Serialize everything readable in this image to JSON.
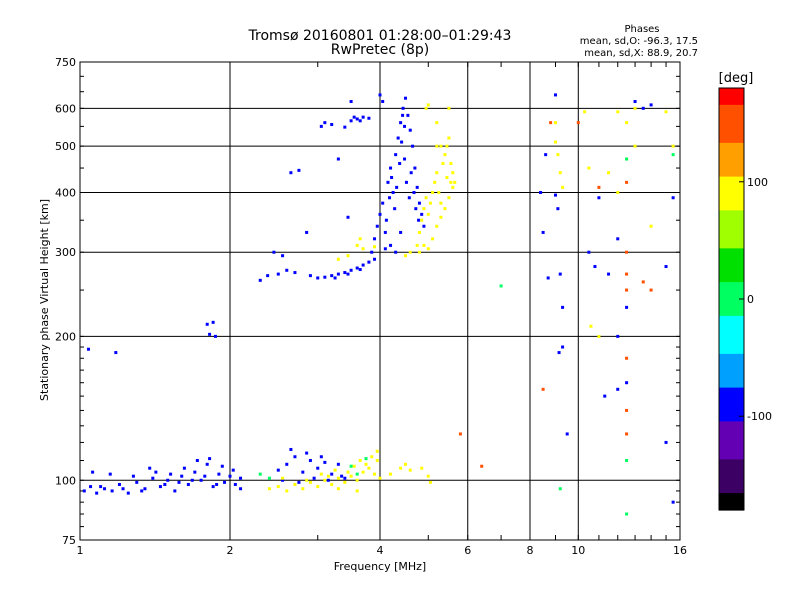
{
  "chart_data": {
    "type": "scatter",
    "title": "Tromsø 20160801 01:28:00–01:29:43",
    "subtitle": "RwPretec (8p)",
    "xlabel": "Frequency [MHz]",
    "ylabel": "Stationary phase Virtual Height [km]",
    "x_scale": "log2",
    "y_scale": "log",
    "xlim": [
      1,
      16
    ],
    "ylim": [
      75,
      750
    ],
    "x_ticks": [
      1,
      2,
      4,
      6,
      8,
      10,
      16
    ],
    "y_ticks": [
      75,
      100,
      200,
      300,
      400,
      500,
      600,
      750
    ],
    "x_grid": [
      2,
      4,
      6,
      8,
      10
    ],
    "y_grid": [
      100,
      200,
      300,
      400,
      500,
      600
    ],
    "grid": true,
    "phases": {
      "title": "Phases",
      "o_line": "mean, sd,O: -96.3, 17.5",
      "x_line": "mean, sd,X: 88.9, 20.7"
    },
    "colorbar": {
      "label": "[deg]",
      "range": [
        -180,
        180
      ],
      "ticks": [
        -100,
        0,
        100
      ],
      "colors": [
        "#000000",
        "#3c0064",
        "#6400b4",
        "#0000ff",
        "#00a0ff",
        "#00ffff",
        "#00ff60",
        "#00e000",
        "#a0ff00",
        "#ffff00",
        "#ffa000",
        "#ff5000",
        "#ff0000"
      ]
    },
    "series": [
      {
        "phase_deg": -100,
        "points": [
          [
            1.02,
            95
          ],
          [
            1.05,
            97
          ],
          [
            1.08,
            94
          ],
          [
            1.12,
            96
          ],
          [
            1.16,
            95
          ],
          [
            1.2,
            98
          ],
          [
            1.25,
            94
          ],
          [
            1.3,
            99
          ],
          [
            1.35,
            96
          ],
          [
            1.4,
            101
          ],
          [
            1.45,
            97
          ],
          [
            1.5,
            100
          ],
          [
            1.55,
            95
          ],
          [
            1.6,
            102
          ],
          [
            1.65,
            98
          ],
          [
            1.7,
            104
          ],
          [
            1.75,
            100
          ],
          [
            1.8,
            108
          ],
          [
            1.85,
            97
          ],
          [
            1.9,
            103
          ],
          [
            1.95,
            99
          ],
          [
            2.0,
            102
          ],
          [
            2.05,
            98
          ],
          [
            2.1,
            101
          ],
          [
            1.1,
            97
          ],
          [
            1.22,
            96
          ],
          [
            1.33,
            95
          ],
          [
            1.48,
            98
          ],
          [
            1.58,
            99
          ],
          [
            1.68,
            100
          ],
          [
            1.78,
            102
          ],
          [
            1.88,
            98
          ],
          [
            1.15,
            103
          ],
          [
            1.28,
            102
          ],
          [
            1.42,
            104
          ],
          [
            1.62,
            106
          ],
          [
            1.72,
            110
          ],
          [
            1.82,
            111
          ],
          [
            1.93,
            107
          ],
          [
            2.03,
            105
          ],
          [
            2.1,
            96
          ],
          [
            1.06,
            104
          ],
          [
            1.38,
            106
          ],
          [
            1.52,
            103
          ],
          [
            2.5,
            105
          ],
          [
            2.6,
            108
          ],
          [
            2.7,
            112
          ],
          [
            2.8,
            104
          ],
          [
            2.9,
            110
          ],
          [
            3.0,
            106
          ],
          [
            3.1,
            109
          ],
          [
            3.2,
            103
          ],
          [
            3.3,
            108
          ],
          [
            3.4,
            101
          ],
          [
            2.55,
            100
          ],
          [
            2.75,
            99
          ],
          [
            2.95,
            101
          ],
          [
            3.15,
            100
          ],
          [
            3.35,
            102
          ],
          [
            2.65,
            116
          ],
          [
            2.85,
            114
          ],
          [
            3.05,
            112
          ],
          [
            1.04,
            188
          ],
          [
            1.18,
            185
          ],
          [
            1.8,
            212
          ],
          [
            1.85,
            214
          ],
          [
            1.82,
            202
          ],
          [
            1.87,
            200
          ],
          [
            2.3,
            262
          ],
          [
            2.38,
            268
          ],
          [
            2.45,
            300
          ],
          [
            2.55,
            295
          ],
          [
            2.6,
            275
          ],
          [
            2.65,
            440
          ],
          [
            2.75,
            445
          ],
          [
            2.9,
            268
          ],
          [
            3.0,
            265
          ],
          [
            3.1,
            266
          ],
          [
            3.2,
            268
          ],
          [
            3.3,
            270
          ],
          [
            3.4,
            272
          ],
          [
            3.5,
            275
          ],
          [
            3.6,
            278
          ],
          [
            3.7,
            282
          ],
          [
            3.8,
            286
          ],
          [
            3.9,
            290
          ],
          [
            2.85,
            330
          ],
          [
            2.5,
            270
          ],
          [
            2.7,
            272
          ],
          [
            3.25,
            265
          ],
          [
            3.45,
            270
          ],
          [
            3.65,
            276
          ],
          [
            3.05,
            550
          ],
          [
            3.1,
            560
          ],
          [
            3.2,
            555
          ],
          [
            3.4,
            548
          ],
          [
            3.5,
            565
          ],
          [
            3.6,
            570
          ],
          [
            3.7,
            575
          ],
          [
            3.8,
            572
          ],
          [
            3.5,
            620
          ],
          [
            3.55,
            575
          ],
          [
            3.65,
            565
          ],
          [
            3.45,
            355
          ],
          [
            3.3,
            470
          ],
          [
            3.85,
            300
          ],
          [
            3.9,
            320
          ],
          [
            3.95,
            340
          ],
          [
            4.0,
            360
          ],
          [
            4.05,
            380
          ],
          [
            4.1,
            330
          ],
          [
            4.15,
            420
          ],
          [
            4.2,
            450
          ],
          [
            4.25,
            400
          ],
          [
            4.3,
            480
          ],
          [
            4.35,
            520
          ],
          [
            4.4,
            560
          ],
          [
            4.45,
            600
          ],
          [
            4.5,
            630
          ],
          [
            4.55,
            580
          ],
          [
            4.6,
            540
          ],
          [
            4.65,
            500
          ],
          [
            4.7,
            450
          ],
          [
            4.75,
            410
          ],
          [
            4.8,
            380
          ],
          [
            4.85,
            360
          ],
          [
            4.9,
            340
          ],
          [
            4.0,
            640
          ],
          [
            4.05,
            620
          ],
          [
            4.12,
            350
          ],
          [
            4.18,
            390
          ],
          [
            4.22,
            430
          ],
          [
            4.28,
            370
          ],
          [
            4.32,
            410
          ],
          [
            4.38,
            460
          ],
          [
            4.42,
            510
          ],
          [
            4.48,
            470
          ],
          [
            4.52,
            420
          ],
          [
            4.58,
            390
          ],
          [
            4.62,
            440
          ],
          [
            4.68,
            400
          ],
          [
            4.72,
            370
          ],
          [
            4.78,
            350
          ],
          [
            4.4,
            330
          ],
          [
            4.3,
            300
          ],
          [
            4.2,
            310
          ],
          [
            4.1,
            305
          ],
          [
            4.48,
            550
          ],
          [
            4.44,
            580
          ],
          [
            8.4,
            400
          ],
          [
            8.5,
            330
          ],
          [
            8.6,
            480
          ],
          [
            8.7,
            265
          ],
          [
            9.0,
            640
          ],
          [
            9.2,
            270
          ],
          [
            9.3,
            230
          ],
          [
            9.5,
            125
          ],
          [
            9.0,
            395
          ],
          [
            9.1,
            370
          ],
          [
            9.15,
            185
          ],
          [
            9.3,
            190
          ],
          [
            10.5,
            300
          ],
          [
            10.8,
            280
          ],
          [
            11.0,
            390
          ],
          [
            11.5,
            270
          ],
          [
            12.0,
            320
          ],
          [
            12.5,
            230
          ],
          [
            12.5,
            160
          ],
          [
            12.0,
            155
          ],
          [
            11.3,
            150
          ],
          [
            12.0,
            200
          ],
          [
            13.0,
            620
          ],
          [
            13.5,
            600
          ],
          [
            14.0,
            610
          ],
          [
            15.0,
            280
          ],
          [
            15.5,
            390
          ],
          [
            15.0,
            120
          ],
          [
            15.5,
            90
          ]
        ]
      },
      {
        "phase_deg": 100,
        "points": [
          [
            2.4,
            96
          ],
          [
            2.5,
            97
          ],
          [
            2.6,
            95
          ],
          [
            2.7,
            98
          ],
          [
            2.8,
            96
          ],
          [
            2.9,
            99
          ],
          [
            3.0,
            97
          ],
          [
            3.1,
            100
          ],
          [
            3.2,
            98
          ],
          [
            3.3,
            101
          ],
          [
            3.4,
            99
          ],
          [
            3.5,
            102
          ],
          [
            3.6,
            100
          ],
          [
            3.7,
            104
          ],
          [
            3.8,
            106
          ],
          [
            3.9,
            103
          ],
          [
            4.0,
            101
          ],
          [
            2.55,
            101
          ],
          [
            2.85,
            100
          ],
          [
            3.15,
            102
          ],
          [
            3.45,
            104
          ],
          [
            3.75,
            108
          ],
          [
            3.95,
            110
          ],
          [
            3.25,
            105
          ],
          [
            3.55,
            107
          ],
          [
            3.85,
            112
          ],
          [
            3.65,
            110
          ],
          [
            3.05,
            103
          ],
          [
            3.95,
            115
          ],
          [
            3.3,
            96
          ],
          [
            3.6,
            95
          ],
          [
            4.2,
            103
          ],
          [
            4.4,
            106
          ],
          [
            4.5,
            108
          ],
          [
            4.6,
            105
          ],
          [
            4.85,
            106
          ],
          [
            5.0,
            102
          ],
          [
            5.05,
            99
          ],
          [
            4.8,
            330
          ],
          [
            4.85,
            350
          ],
          [
            4.9,
            370
          ],
          [
            4.95,
            390
          ],
          [
            5.0,
            360
          ],
          [
            5.05,
            380
          ],
          [
            5.1,
            400
          ],
          [
            5.15,
            420
          ],
          [
            5.2,
            440
          ],
          [
            5.25,
            400
          ],
          [
            5.3,
            380
          ],
          [
            5.35,
            460
          ],
          [
            5.4,
            480
          ],
          [
            5.45,
            500
          ],
          [
            5.5,
            520
          ],
          [
            5.55,
            460
          ],
          [
            5.6,
            440
          ],
          [
            5.5,
            600
          ],
          [
            5.2,
            560
          ],
          [
            5.0,
            610
          ],
          [
            4.95,
            600
          ],
          [
            4.8,
            300
          ],
          [
            4.9,
            310
          ],
          [
            5.0,
            305
          ],
          [
            5.1,
            320
          ],
          [
            5.2,
            340
          ],
          [
            5.3,
            355
          ],
          [
            5.4,
            370
          ],
          [
            5.5,
            390
          ],
          [
            5.6,
            410
          ],
          [
            5.65,
            420
          ],
          [
            5.3,
            500
          ],
          [
            5.2,
            500
          ],
          [
            5.45,
            430
          ],
          [
            5.55,
            420
          ],
          [
            4.75,
            310
          ],
          [
            4.6,
            300
          ],
          [
            4.5,
            295
          ],
          [
            3.3,
            290
          ],
          [
            3.45,
            295
          ],
          [
            3.6,
            310
          ],
          [
            3.7,
            305
          ],
          [
            3.9,
            308
          ],
          [
            3.65,
            320
          ],
          [
            9.0,
            560
          ],
          [
            9.1,
            480
          ],
          [
            9.2,
            440
          ],
          [
            9.3,
            410
          ],
          [
            9.0,
            510
          ],
          [
            10.3,
            590
          ],
          [
            10.5,
            450
          ],
          [
            10.6,
            210
          ],
          [
            11.0,
            200
          ],
          [
            12.0,
            590
          ],
          [
            12.5,
            560
          ],
          [
            12.0,
            400
          ],
          [
            11.5,
            440
          ],
          [
            13.0,
            600
          ],
          [
            13.0,
            500
          ],
          [
            14.0,
            340
          ],
          [
            15.0,
            590
          ],
          [
            15.5,
            500
          ]
        ]
      },
      {
        "phase_deg": 150,
        "points": [
          [
            5.8,
            125
          ],
          [
            6.4,
            107
          ],
          [
            8.5,
            155
          ],
          [
            8.8,
            560
          ],
          [
            10.0,
            560
          ],
          [
            11.0,
            410
          ],
          [
            12.5,
            270
          ],
          [
            12.5,
            250
          ],
          [
            12.5,
            180
          ],
          [
            12.5,
            140
          ],
          [
            12.5,
            125
          ],
          [
            13.5,
            260
          ],
          [
            14.0,
            250
          ],
          [
            12.5,
            470
          ],
          [
            12.5,
            300
          ],
          [
            12.5,
            420
          ]
        ]
      },
      {
        "phase_deg": 0,
        "points": [
          [
            2.3,
            103
          ],
          [
            2.4,
            101
          ],
          [
            3.5,
            107
          ],
          [
            3.6,
            103
          ],
          [
            3.75,
            111
          ],
          [
            7.0,
            255
          ],
          [
            12.5,
            85
          ],
          [
            12.5,
            110
          ],
          [
            15.5,
            480
          ],
          [
            9.2,
            96
          ],
          [
            12.5,
            470
          ]
        ]
      }
    ]
  }
}
